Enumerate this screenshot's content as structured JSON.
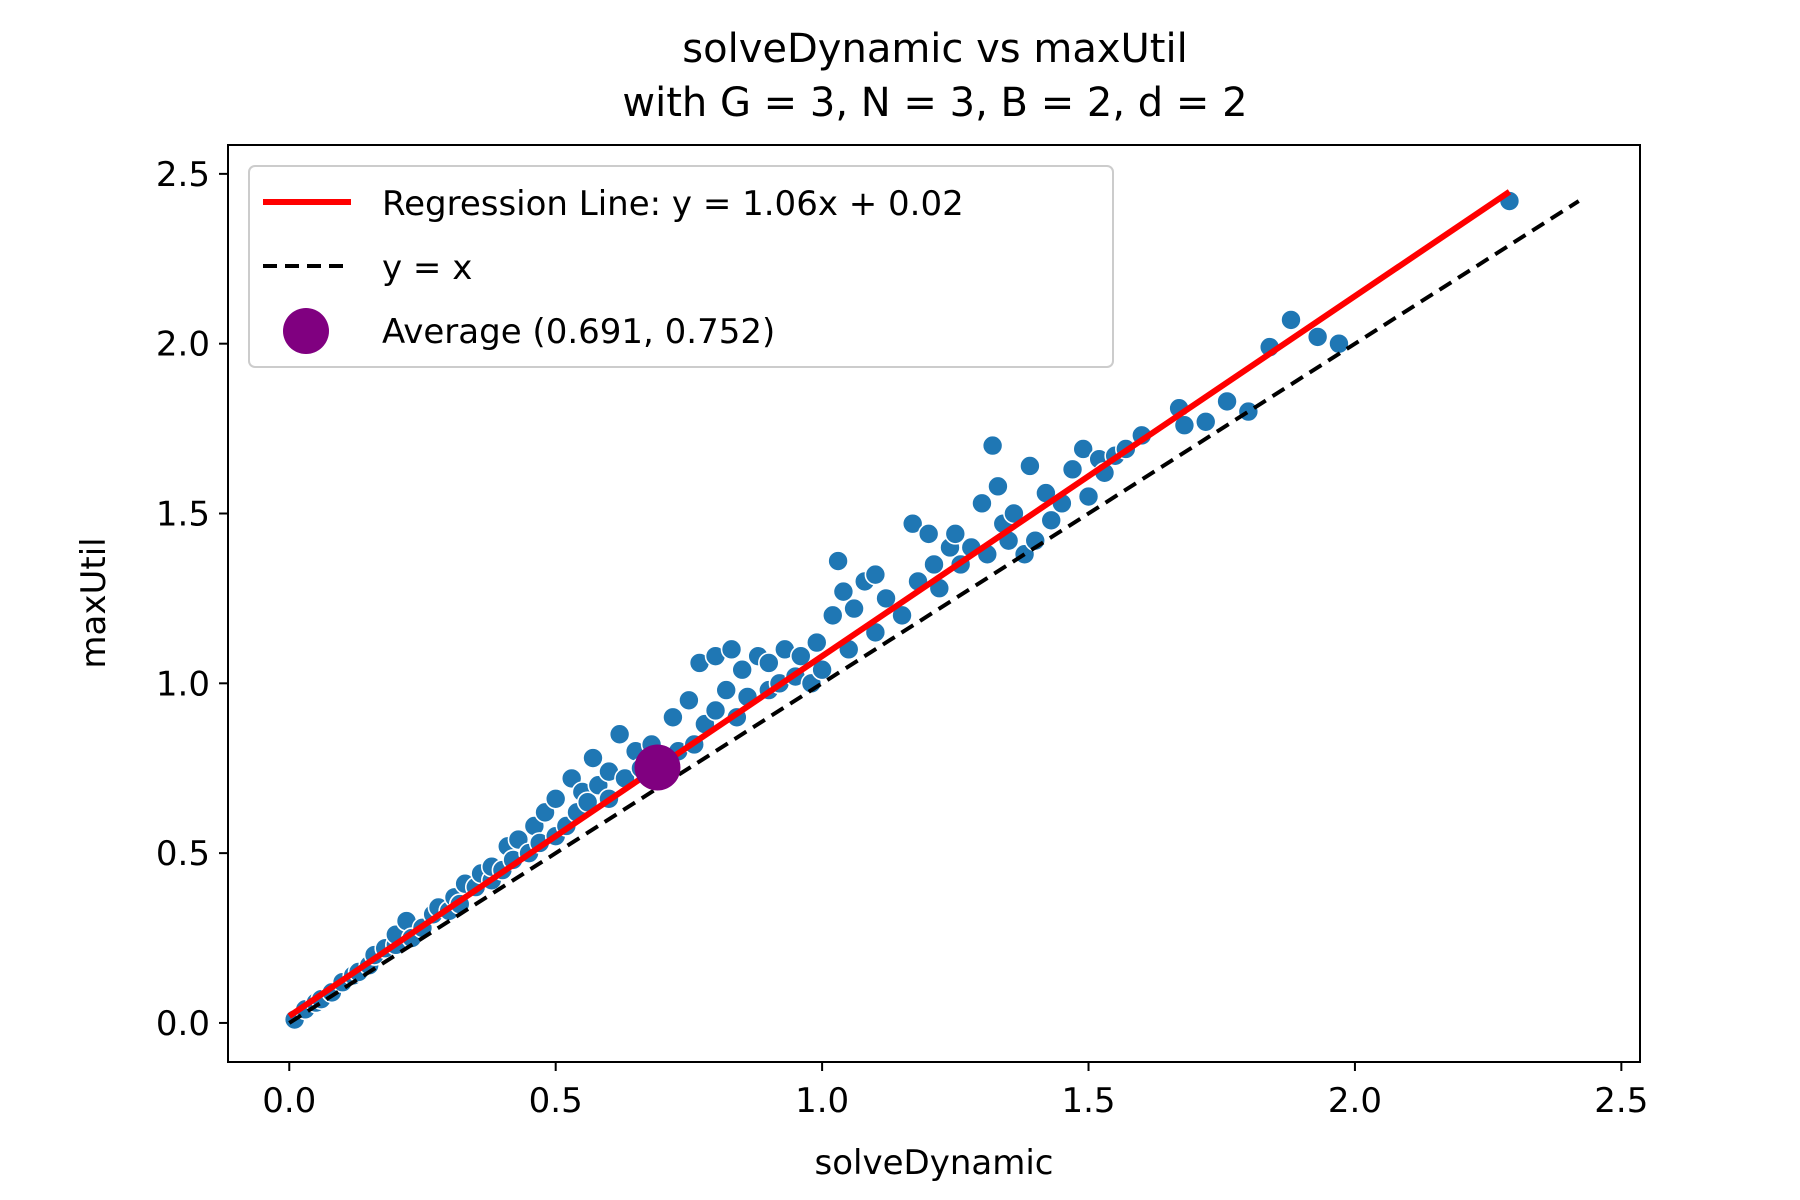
{
  "chart_data": {
    "type": "scatter",
    "title": "solveDynamic vs maxUtil",
    "subtitle": "with G = 3, N = 3, B = 2, d = 2",
    "xlabel": "solveDynamic",
    "ylabel": "maxUtil",
    "xlim": [
      -0.115,
      2.535
    ],
    "ylim": [
      -0.115,
      2.585
    ],
    "x_ticks": [
      "0.0",
      "0.5",
      "1.0",
      "1.5",
      "2.0",
      "2.5"
    ],
    "y_ticks": [
      "0.0",
      "0.5",
      "1.0",
      "1.5",
      "2.0",
      "2.5"
    ],
    "grid": false,
    "legend_position": "upper-left",
    "colors": {
      "points": "#1f77b4",
      "regression": "#ff0000",
      "identity": "#000000",
      "average": "#800080"
    },
    "legend": [
      {
        "label": "Regression Line: y = 1.06x + 0.02",
        "kind": "solid-line"
      },
      {
        "label": "y = x",
        "kind": "dashed-line"
      },
      {
        "label": "Average (0.691, 0.752)",
        "kind": "marker"
      }
    ],
    "regression": {
      "slope": 1.06,
      "intercept": 0.02,
      "x_range": [
        0.0,
        2.29
      ]
    },
    "identity_line": {
      "x_range": [
        0.0,
        2.42
      ]
    },
    "average": {
      "x": 0.691,
      "y": 0.752
    },
    "points": [
      [
        0.01,
        0.01
      ],
      [
        0.03,
        0.04
      ],
      [
        0.05,
        0.06
      ],
      [
        0.06,
        0.07
      ],
      [
        0.08,
        0.09
      ],
      [
        0.1,
        0.12
      ],
      [
        0.12,
        0.14
      ],
      [
        0.13,
        0.15
      ],
      [
        0.15,
        0.17
      ],
      [
        0.16,
        0.2
      ],
      [
        0.18,
        0.22
      ],
      [
        0.2,
        0.23
      ],
      [
        0.2,
        0.26
      ],
      [
        0.22,
        0.3
      ],
      [
        0.23,
        0.25
      ],
      [
        0.25,
        0.28
      ],
      [
        0.27,
        0.32
      ],
      [
        0.28,
        0.34
      ],
      [
        0.3,
        0.33
      ],
      [
        0.31,
        0.37
      ],
      [
        0.32,
        0.35
      ],
      [
        0.33,
        0.41
      ],
      [
        0.35,
        0.4
      ],
      [
        0.36,
        0.44
      ],
      [
        0.38,
        0.42
      ],
      [
        0.38,
        0.46
      ],
      [
        0.4,
        0.45
      ],
      [
        0.41,
        0.52
      ],
      [
        0.42,
        0.48
      ],
      [
        0.43,
        0.54
      ],
      [
        0.45,
        0.5
      ],
      [
        0.46,
        0.58
      ],
      [
        0.47,
        0.53
      ],
      [
        0.48,
        0.62
      ],
      [
        0.5,
        0.55
      ],
      [
        0.5,
        0.66
      ],
      [
        0.52,
        0.58
      ],
      [
        0.53,
        0.72
      ],
      [
        0.54,
        0.62
      ],
      [
        0.55,
        0.68
      ],
      [
        0.56,
        0.65
      ],
      [
        0.57,
        0.78
      ],
      [
        0.58,
        0.7
      ],
      [
        0.6,
        0.66
      ],
      [
        0.6,
        0.74
      ],
      [
        0.62,
        0.85
      ],
      [
        0.63,
        0.72
      ],
      [
        0.65,
        0.8
      ],
      [
        0.66,
        0.75
      ],
      [
        0.68,
        0.82
      ],
      [
        0.7,
        0.78
      ],
      [
        0.72,
        0.9
      ],
      [
        0.73,
        0.8
      ],
      [
        0.75,
        0.95
      ],
      [
        0.76,
        0.82
      ],
      [
        0.77,
        1.06
      ],
      [
        0.78,
        0.88
      ],
      [
        0.8,
        1.08
      ],
      [
        0.8,
        0.92
      ],
      [
        0.82,
        0.98
      ],
      [
        0.83,
        1.1
      ],
      [
        0.84,
        0.9
      ],
      [
        0.85,
        1.04
      ],
      [
        0.86,
        0.96
      ],
      [
        0.88,
        1.08
      ],
      [
        0.9,
        0.98
      ],
      [
        0.9,
        1.06
      ],
      [
        0.92,
        1.0
      ],
      [
        0.93,
        1.1
      ],
      [
        0.95,
        1.02
      ],
      [
        0.96,
        1.08
      ],
      [
        0.98,
        1.0
      ],
      [
        0.99,
        1.12
      ],
      [
        1.0,
        1.04
      ],
      [
        1.02,
        1.2
      ],
      [
        1.03,
        1.36
      ],
      [
        1.04,
        1.27
      ],
      [
        1.05,
        1.1
      ],
      [
        1.06,
        1.22
      ],
      [
        1.08,
        1.3
      ],
      [
        1.1,
        1.32
      ],
      [
        1.1,
        1.15
      ],
      [
        1.12,
        1.25
      ],
      [
        1.15,
        1.2
      ],
      [
        1.17,
        1.47
      ],
      [
        1.18,
        1.3
      ],
      [
        1.2,
        1.44
      ],
      [
        1.21,
        1.35
      ],
      [
        1.22,
        1.28
      ],
      [
        1.24,
        1.4
      ],
      [
        1.25,
        1.44
      ],
      [
        1.26,
        1.35
      ],
      [
        1.28,
        1.4
      ],
      [
        1.3,
        1.53
      ],
      [
        1.31,
        1.38
      ],
      [
        1.32,
        1.7
      ],
      [
        1.33,
        1.58
      ],
      [
        1.34,
        1.47
      ],
      [
        1.35,
        1.42
      ],
      [
        1.36,
        1.5
      ],
      [
        1.38,
        1.38
      ],
      [
        1.39,
        1.64
      ],
      [
        1.4,
        1.42
      ],
      [
        1.42,
        1.56
      ],
      [
        1.43,
        1.48
      ],
      [
        1.45,
        1.53
      ],
      [
        1.47,
        1.63
      ],
      [
        1.49,
        1.69
      ],
      [
        1.5,
        1.55
      ],
      [
        1.52,
        1.66
      ],
      [
        1.53,
        1.62
      ],
      [
        1.55,
        1.67
      ],
      [
        1.57,
        1.69
      ],
      [
        1.6,
        1.73
      ],
      [
        1.67,
        1.81
      ],
      [
        1.68,
        1.76
      ],
      [
        1.72,
        1.77
      ],
      [
        1.76,
        1.83
      ],
      [
        1.8,
        1.8
      ],
      [
        1.84,
        1.99
      ],
      [
        1.88,
        2.07
      ],
      [
        1.93,
        2.02
      ],
      [
        1.97,
        2.0
      ],
      [
        2.29,
        2.42
      ]
    ]
  }
}
